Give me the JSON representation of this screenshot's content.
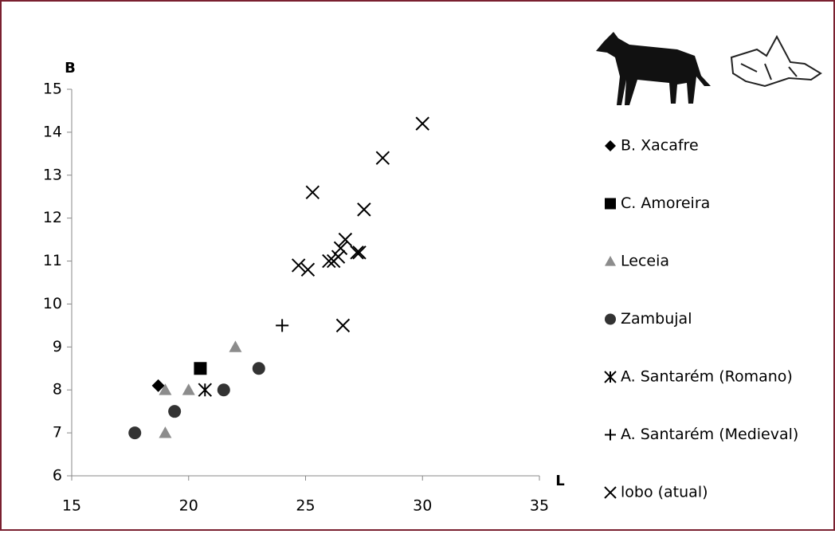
{
  "chart_data": {
    "type": "scatter",
    "x_label": "L",
    "y_label": "B",
    "xlim": [
      15,
      35
    ],
    "xticks": [
      15,
      20,
      25,
      30,
      35
    ],
    "ylim": [
      6,
      15
    ],
    "yticks": [
      6,
      7,
      8,
      9,
      10,
      11,
      12,
      13,
      14,
      15
    ],
    "series": [
      {
        "name": "B. Xacafre",
        "color": "#000000",
        "marker": "diamond",
        "x": [
          18.7
        ],
        "values": [
          8.1
        ]
      },
      {
        "name": "C. Amoreira",
        "color": "#000000",
        "marker": "square",
        "x": [
          20.5
        ],
        "values": [
          8.5
        ]
      },
      {
        "name": "Leceia",
        "color": "#8c8c8c",
        "marker": "triangle",
        "x": [
          19,
          19,
          20,
          22
        ],
        "values": [
          8,
          7,
          8,
          9
        ]
      },
      {
        "name": "Zambujal",
        "color": "#333333",
        "marker": "circle",
        "x": [
          17.7,
          19.4,
          21.5,
          23
        ],
        "values": [
          7,
          7.5,
          8,
          8.5
        ]
      },
      {
        "name": "A. Santarém (Romano)",
        "color": "#000000",
        "marker": "asterisk",
        "x": [
          20.7
        ],
        "values": [
          8
        ]
      },
      {
        "name": "A. Santarém (Medieval)",
        "color": "#000000",
        "marker": "plus",
        "x": [
          24
        ],
        "values": [
          9.5
        ]
      },
      {
        "name": "lobo (atual)",
        "color": "#000000",
        "marker": "cross",
        "x": [
          30,
          28.3,
          25.3,
          27.5,
          26.7,
          26.5,
          26.4,
          27.2,
          27.3,
          26.2,
          26.0,
          24.7,
          25.1,
          26.6
        ],
        "values": [
          14.2,
          13.4,
          12.6,
          12.2,
          11.5,
          11.3,
          11.1,
          11.2,
          11.2,
          11.0,
          11.0,
          10.9,
          10.8,
          9.5
        ]
      }
    ]
  }
}
